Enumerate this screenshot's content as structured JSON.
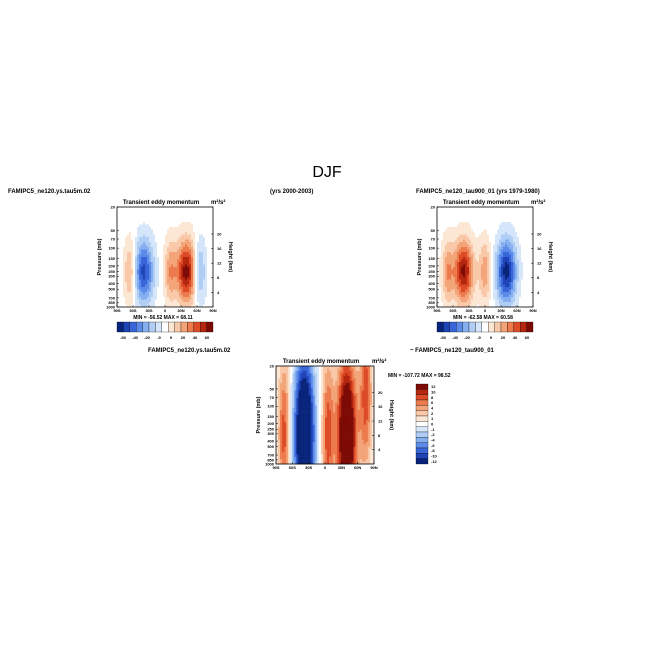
{
  "figure_title": "DJF",
  "chart_data": [
    {
      "type": "heatmap",
      "title": "Transient eddy momentum",
      "units": "m²/s²",
      "left_label": "FAMIPC5_ne120.ys.tau5m.02",
      "right_label": "(yrs 2000-2003)",
      "xlabel": "",
      "ylabel": "Pressure (mb)",
      "ylabel_right": "Height (km)",
      "x_ticks": [
        "90S",
        "60S",
        "30S",
        "0",
        "30N",
        "60N",
        "90N"
      ],
      "y_ticks": [
        "20",
        "50",
        "70",
        "100",
        "150",
        "200",
        "250",
        "300",
        "400",
        "500",
        "700",
        "850",
        "1000"
      ],
      "height_ticks": [
        "20",
        "16",
        "12",
        "8",
        "4"
      ],
      "min_text": "MIN = -56.52",
      "max_text": "MAX = 68.11",
      "colorbar_labels": [
        "-60",
        "-40",
        "-20",
        "-9",
        "9",
        "20",
        "40",
        "60"
      ],
      "features": [
        {
          "lat": -40,
          "p": 250,
          "sign": "negative",
          "peak": -56.52
        },
        {
          "lat": 40,
          "p": 250,
          "sign": "positive",
          "peak": 68.11
        },
        {
          "lat": -65,
          "p": 250,
          "sign": "positive"
        },
        {
          "lat": 10,
          "p": 250,
          "sign": "positive"
        },
        {
          "lat": 65,
          "p": 250,
          "sign": "negative"
        }
      ]
    },
    {
      "type": "heatmap",
      "title": "Transient eddy momentum",
      "units": "m²/s²",
      "left_label": "FAMIPC5_ne120_tau900_01 (yrs 1979-1980)",
      "right_label": "",
      "xlabel": "",
      "ylabel": "Pressure (mb)",
      "ylabel_right": "Height (km)",
      "x_ticks": [
        "90S",
        "60S",
        "30S",
        "0",
        "30N",
        "60N",
        "90N"
      ],
      "y_ticks": [
        "20",
        "50",
        "70",
        "100",
        "150",
        "200",
        "250",
        "300",
        "400",
        "500",
        "700",
        "850",
        "1000"
      ],
      "height_ticks": [
        "20",
        "16",
        "12",
        "8",
        "4"
      ],
      "min_text": "MIN = -62.58",
      "max_text": "MAX = 60.58",
      "colorbar_labels": [
        "-60",
        "-40",
        "-20",
        "-9",
        "9",
        "20",
        "40",
        "60"
      ],
      "features": [
        {
          "lat": -40,
          "p": 250,
          "sign": "positive",
          "peak": 60.58
        },
        {
          "lat": 40,
          "p": 250,
          "sign": "negative",
          "peak": -62.58
        },
        {
          "lat": -70,
          "p": 250,
          "sign": "positive"
        },
        {
          "lat": 0,
          "p": 250,
          "sign": "positive"
        }
      ]
    },
    {
      "type": "heatmap",
      "title": "Transient eddy momentum",
      "units": "m²/s²",
      "left_label": "FAMIPC5_ne120.ys.tau5m.02",
      "right_label": "~ FAMIPC5_ne120_tau900_01",
      "xlabel": "",
      "ylabel": "Pressure (mb)",
      "ylabel_right": "Height (km)",
      "x_ticks": [
        "90S",
        "60S",
        "30S",
        "0",
        "30N",
        "60N",
        "90N"
      ],
      "y_ticks": [
        "20",
        "50",
        "70",
        "100",
        "150",
        "200",
        "250",
        "300",
        "400",
        "500",
        "700",
        "850",
        "1000"
      ],
      "height_ticks": [
        "20",
        "16",
        "12",
        "8",
        "4"
      ],
      "min_text": "MIN = -107.72",
      "max_text": "MAX = 98.52",
      "colorbar_labels": [
        "12",
        "10",
        "8",
        "6",
        "4",
        "2",
        "1",
        "0",
        "-1",
        "-2",
        "-4",
        "-6",
        "-8",
        "-10",
        "-12"
      ],
      "features": [
        {
          "lat": -38,
          "p": 300,
          "sign": "negative",
          "peak": -107.72
        },
        {
          "lat": 40,
          "p": 300,
          "sign": "positive",
          "peak": 98.52
        },
        {
          "lat": -75,
          "p": 300,
          "sign": "positive"
        },
        {
          "lat": 5,
          "p": 300,
          "sign": "positive"
        },
        {
          "lat": 75,
          "p": 60,
          "sign": "positive"
        }
      ]
    }
  ],
  "palette": [
    "#08247a",
    "#1f44b8",
    "#3866d8",
    "#5c8ae8",
    "#86aff0",
    "#b0cdf5",
    "#d6e6fa",
    "#ffffff",
    "#fce6d4",
    "#f8c8a8",
    "#f3a478",
    "#ec7a4d",
    "#dc4a26",
    "#b5260f",
    "#7d0a05"
  ]
}
